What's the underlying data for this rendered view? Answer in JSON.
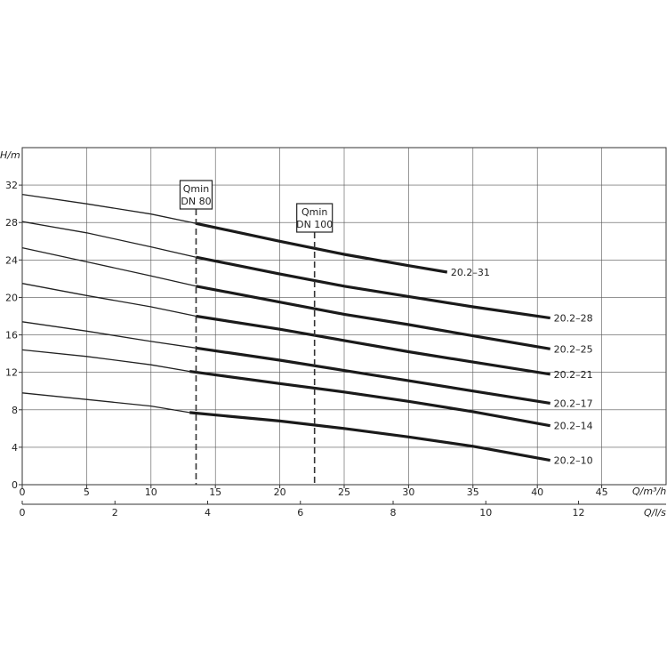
{
  "chart_data": {
    "type": "line",
    "y_axis": {
      "label": "H/m",
      "ticks": [
        "0",
        "4",
        "8",
        "12",
        "16",
        "20",
        "24",
        "28",
        "32"
      ],
      "ylim": [
        0,
        36
      ]
    },
    "x_axis_primary": {
      "label": "Q/m³/h",
      "ticks": [
        "0",
        "5",
        "10",
        "15",
        "20",
        "25",
        "30",
        "35",
        "40",
        "45"
      ],
      "xlim": [
        0,
        50
      ]
    },
    "x_axis_secondary": {
      "label": "Q/l/s",
      "ticks": [
        "0",
        "2",
        "4",
        "6",
        "8",
        "10",
        "12"
      ],
      "xlim": [
        0,
        13.8889
      ]
    },
    "grid": true,
    "markers": [
      {
        "label_line1": "Qmin",
        "label_line2": "DN 80",
        "x": 13.5
      },
      {
        "label_line1": "Qmin",
        "label_line2": "DN 100",
        "x": 22.7
      }
    ],
    "series": [
      {
        "name": "20.2–31",
        "thin_end": 13.5,
        "points": [
          [
            0,
            31.0
          ],
          [
            5,
            30.0
          ],
          [
            10,
            28.9
          ],
          [
            13.5,
            27.9
          ],
          [
            20,
            26.0
          ],
          [
            25,
            24.6
          ],
          [
            30,
            23.4
          ],
          [
            33,
            22.7
          ]
        ]
      },
      {
        "name": "20.2–28",
        "thin_end": 13.5,
        "points": [
          [
            0,
            28.1
          ],
          [
            5,
            26.9
          ],
          [
            10,
            25.4
          ],
          [
            13.5,
            24.3
          ],
          [
            20,
            22.5
          ],
          [
            25,
            21.2
          ],
          [
            30,
            20.1
          ],
          [
            35,
            19.0
          ],
          [
            41,
            17.8
          ]
        ]
      },
      {
        "name": "20.2–25",
        "thin_end": 13.5,
        "points": [
          [
            0,
            25.3
          ],
          [
            5,
            23.8
          ],
          [
            10,
            22.3
          ],
          [
            13.5,
            21.2
          ],
          [
            20,
            19.5
          ],
          [
            25,
            18.2
          ],
          [
            30,
            17.1
          ],
          [
            35,
            15.9
          ],
          [
            41,
            14.5
          ]
        ]
      },
      {
        "name": "20.2–21",
        "thin_end": 13.5,
        "points": [
          [
            0,
            21.5
          ],
          [
            5,
            20.2
          ],
          [
            10,
            19.0
          ],
          [
            13.5,
            18.0
          ],
          [
            20,
            16.6
          ],
          [
            25,
            15.4
          ],
          [
            30,
            14.2
          ],
          [
            35,
            13.1
          ],
          [
            41,
            11.8
          ]
        ]
      },
      {
        "name": "20.2–17",
        "thin_end": 13.5,
        "points": [
          [
            0,
            17.4
          ],
          [
            5,
            16.4
          ],
          [
            10,
            15.3
          ],
          [
            13.5,
            14.6
          ],
          [
            20,
            13.3
          ],
          [
            25,
            12.2
          ],
          [
            30,
            11.1
          ],
          [
            35,
            10.0
          ],
          [
            41,
            8.7
          ]
        ]
      },
      {
        "name": "20.2–14",
        "thin_end": 13.0,
        "points": [
          [
            0,
            14.4
          ],
          [
            5,
            13.7
          ],
          [
            10,
            12.8
          ],
          [
            13.0,
            12.1
          ],
          [
            20,
            10.8
          ],
          [
            25,
            9.9
          ],
          [
            30,
            8.9
          ],
          [
            35,
            7.8
          ],
          [
            41,
            6.3
          ]
        ]
      },
      {
        "name": "20.2–10",
        "thin_end": 13.0,
        "points": [
          [
            0,
            9.8
          ],
          [
            5,
            9.1
          ],
          [
            10,
            8.4
          ],
          [
            13.0,
            7.7
          ],
          [
            20,
            6.8
          ],
          [
            25,
            6.0
          ],
          [
            30,
            5.1
          ],
          [
            35,
            4.1
          ],
          [
            41,
            2.6
          ]
        ]
      }
    ]
  }
}
